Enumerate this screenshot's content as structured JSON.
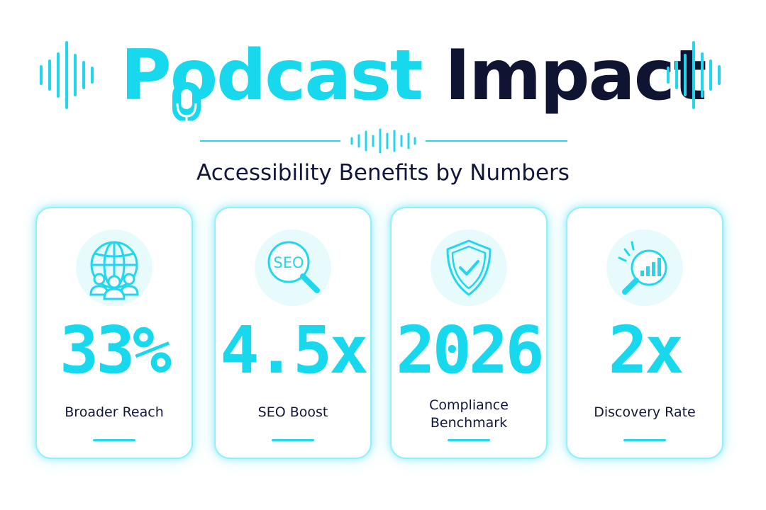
{
  "header": {
    "title_accent": "Podcast",
    "title_dark": "Impact",
    "subtitle": "Accessibility Benefits by Numbers"
  },
  "colors": {
    "accent": "#18d8ee",
    "dark": "#0f1433",
    "card_border": "#8ff0fb",
    "icon_bg": "#e7fbfd"
  },
  "cards": [
    {
      "icon": "globe-audience-icon",
      "value": "33%",
      "label": "Broader Reach"
    },
    {
      "icon": "seo-magnifier-icon",
      "value": "4.5x",
      "label": "SEO Boost"
    },
    {
      "icon": "shield-check-icon",
      "value": "2026",
      "label": "Compliance Benchmark"
    },
    {
      "icon": "chart-magnifier-icon",
      "value": "2x",
      "label": "Discovery Rate"
    }
  ]
}
